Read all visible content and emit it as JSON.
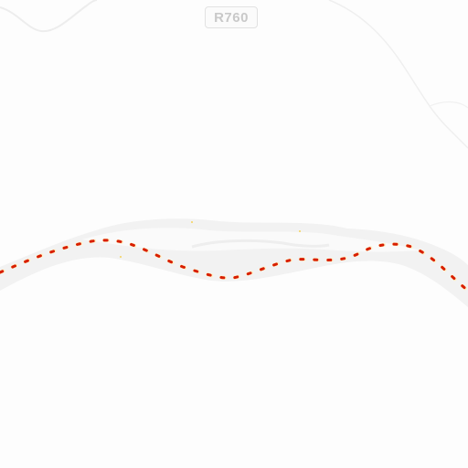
{
  "map": {
    "road_label": "R760",
    "colors": {
      "background": "#fdfdfd",
      "river_band": "#f2f2f2",
      "river_highlight": "#fafafa",
      "minor_road": "#ededed",
      "dash_primary": "#d81e00",
      "dash_secondary": "#f5a300"
    },
    "features": [
      "road-shield",
      "river-band",
      "dotted-route",
      "minor-roads"
    ]
  }
}
